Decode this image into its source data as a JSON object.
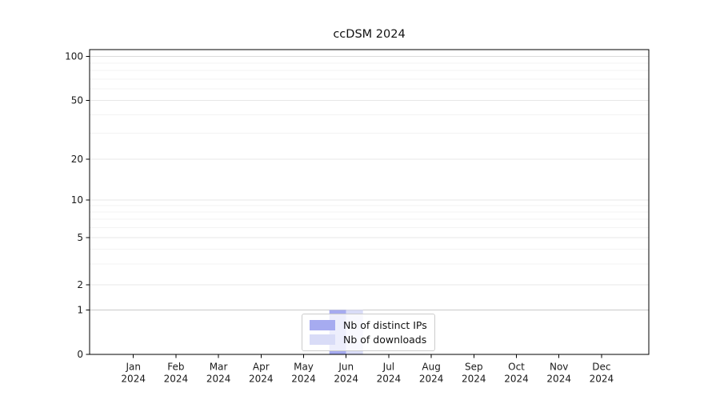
{
  "chart_data": {
    "type": "bar",
    "title": "ccDSM 2024",
    "categories": [
      "Jan 2024",
      "Feb 2024",
      "Mar 2024",
      "Apr 2024",
      "May 2024",
      "Jun 2024",
      "Jul 2024",
      "Aug 2024",
      "Sep 2024",
      "Oct 2024",
      "Nov 2024",
      "Dec 2024"
    ],
    "series": [
      {
        "name": "Nb of distinct IPs",
        "color": "#a6abf0",
        "values": [
          0,
          0,
          0,
          0,
          0,
          1,
          0,
          0,
          0,
          0,
          0,
          0
        ]
      },
      {
        "name": "Nb of downloads",
        "color": "#d9dcf7",
        "values": [
          0,
          0,
          0,
          0,
          0,
          1,
          0,
          0,
          0,
          0,
          0,
          0
        ]
      }
    ],
    "xlabel": "",
    "ylabel": "",
    "yscale": "symlog",
    "ylim": [
      0,
      100
    ],
    "ytick_values": [
      0,
      1,
      2,
      5,
      10,
      20,
      50,
      100
    ],
    "ytick_labels": [
      "0",
      "1",
      "2",
      "5",
      "10",
      "20",
      "50",
      "100"
    ],
    "minor_ytick_values": [
      3,
      4,
      6,
      7,
      8,
      9,
      30,
      40,
      60,
      70,
      80,
      90
    ],
    "grid": "horizontal",
    "legend": {
      "position": "lower center"
    }
  }
}
